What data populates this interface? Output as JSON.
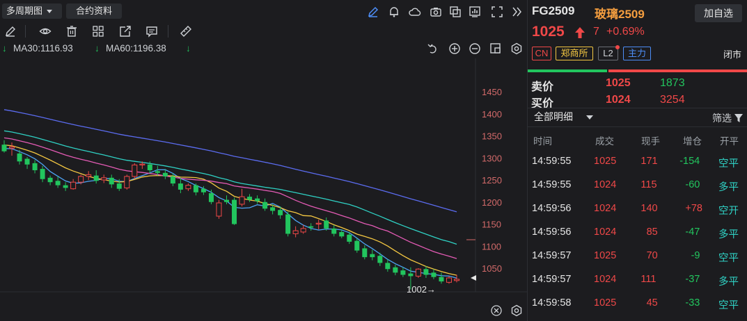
{
  "toolbar": {
    "period_label": "多周期图",
    "contract_label": "合约资料"
  },
  "ma_legend": [
    {
      "label": "MA30:1116.93",
      "color": "#2fd1c4"
    },
    {
      "label": "MA60:1196.38",
      "color": "#5b6cf0"
    }
  ],
  "chart_data": {
    "type": "candlestick",
    "y_ticks": [
      "1450",
      "1400",
      "1350",
      "1300",
      "1250",
      "1200",
      "1150",
      "1100",
      "1050"
    ],
    "ylim": [
      1000,
      1480
    ],
    "annotation": "1002→",
    "candles": [
      [
        1330,
        1340,
        1315,
        1312,
        1
      ],
      [
        1322,
        1335,
        1325,
        1305,
        0
      ],
      [
        1310,
        1318,
        1292,
        1285,
        1
      ],
      [
        1298,
        1302,
        1285,
        1275,
        1
      ],
      [
        1288,
        1295,
        1272,
        1265,
        1
      ],
      [
        1275,
        1282,
        1252,
        1245,
        1
      ],
      [
        1255,
        1260,
        1245,
        1238,
        1
      ],
      [
        1248,
        1258,
        1238,
        1232,
        1
      ],
      [
        1238,
        1245,
        1232,
        1225,
        1
      ],
      [
        1230,
        1252,
        1245,
        1228,
        0
      ],
      [
        1245,
        1262,
        1258,
        1240,
        0
      ],
      [
        1258,
        1270,
        1262,
        1250,
        0
      ],
      [
        1260,
        1272,
        1248,
        1242,
        1
      ],
      [
        1250,
        1262,
        1255,
        1243,
        0
      ],
      [
        1255,
        1262,
        1240,
        1232,
        1
      ],
      [
        1242,
        1252,
        1230,
        1225,
        1
      ],
      [
        1232,
        1262,
        1258,
        1228,
        0
      ],
      [
        1258,
        1288,
        1284,
        1252,
        0
      ],
      [
        1284,
        1292,
        1286,
        1275,
        0
      ],
      [
        1285,
        1292,
        1272,
        1265,
        1
      ],
      [
        1270,
        1282,
        1266,
        1260,
        1
      ],
      [
        1266,
        1275,
        1258,
        1252,
        1
      ],
      [
        1258,
        1265,
        1242,
        1236,
        1
      ],
      [
        1242,
        1255,
        1228,
        1220,
        1
      ],
      [
        1230,
        1242,
        1238,
        1225,
        0
      ],
      [
        1238,
        1242,
        1222,
        1215,
        1
      ],
      [
        1230,
        1236,
        1222,
        1216,
        1
      ],
      [
        1220,
        1228,
        1200,
        1195,
        1
      ],
      [
        1198,
        1205,
        1168,
        1162,
        0
      ],
      [
        1205,
        1215,
        1200,
        1195,
        1
      ],
      [
        1205,
        1210,
        1150,
        1148,
        1
      ],
      [
        1195,
        1230,
        1212,
        1190,
        0
      ],
      [
        1212,
        1218,
        1205,
        1200,
        1
      ],
      [
        1208,
        1215,
        1202,
        1196,
        1
      ],
      [
        1200,
        1208,
        1185,
        1180,
        1
      ],
      [
        1188,
        1195,
        1180,
        1172,
        1
      ],
      [
        1182,
        1190,
        1170,
        1162,
        1
      ],
      [
        1172,
        1178,
        1128,
        1122,
        1
      ],
      [
        1135,
        1145,
        1128,
        1120,
        0
      ],
      [
        1140,
        1148,
        1132,
        1128,
        0
      ],
      [
        1145,
        1152,
        1142,
        1135,
        1
      ],
      [
        1150,
        1160,
        1152,
        1138,
        0
      ],
      [
        1158,
        1165,
        1140,
        1135,
        1
      ],
      [
        1140,
        1148,
        1128,
        1122,
        1
      ],
      [
        1132,
        1138,
        1122,
        1118,
        1
      ],
      [
        1126,
        1132,
        1110,
        1105,
        1
      ],
      [
        1112,
        1118,
        1090,
        1085,
        1
      ],
      [
        1095,
        1102,
        1075,
        1070,
        1
      ],
      [
        1082,
        1092,
        1075,
        1068,
        1
      ],
      [
        1078,
        1085,
        1062,
        1055,
        1
      ],
      [
        1062,
        1070,
        1048,
        1042,
        1
      ],
      [
        1052,
        1058,
        1040,
        1034,
        1
      ],
      [
        1045,
        1052,
        1035,
        1030,
        1
      ],
      [
        1038,
        1052,
        1032,
        1002,
        1
      ],
      [
        1032,
        1050,
        1048,
        1028,
        0
      ],
      [
        1048,
        1055,
        1035,
        1028,
        1
      ],
      [
        1040,
        1048,
        1030,
        1025,
        1
      ],
      [
        1030,
        1040,
        1020,
        1015,
        1
      ],
      [
        1018,
        1032,
        1028,
        1015,
        0
      ],
      [
        1022,
        1035,
        1025,
        1018,
        0
      ]
    ]
  },
  "quote": {
    "symbol": "FG2509",
    "name": "玻璃2509",
    "watch_label": "加自选",
    "price": "1025",
    "change": "7",
    "pct": "+0.69%",
    "tags": [
      "CN",
      "郑商所",
      "L2",
      "主力"
    ],
    "status": "闭市",
    "ask_label": "卖价",
    "ask_price": "1025",
    "ask_vol": "1873",
    "bid_label": "买价",
    "bid_price": "1024",
    "bid_vol": "3254"
  },
  "detail": {
    "title": "全部明细",
    "filter_label": "筛选",
    "headers": [
      "时间",
      "成交",
      "现手",
      "增仓",
      "开平"
    ],
    "rows": [
      {
        "time": "14:59:55",
        "price": "1025",
        "vol": "171",
        "oi": "-154",
        "kind": "空平",
        "kind_color": "#2fd1c4"
      },
      {
        "time": "14:59:55",
        "price": "1024",
        "vol": "115",
        "oi": "-60",
        "kind": "多平",
        "kind_color": "#2fd1c4"
      },
      {
        "time": "14:59:56",
        "price": "1024",
        "vol": "140",
        "oi": "+78",
        "kind": "空开",
        "kind_color": "#2fd1c4"
      },
      {
        "time": "14:59:56",
        "price": "1024",
        "vol": "85",
        "oi": "-47",
        "kind": "多平",
        "kind_color": "#2fd1c4"
      },
      {
        "time": "14:59:57",
        "price": "1025",
        "vol": "70",
        "oi": "-9",
        "kind": "空平",
        "kind_color": "#2fd1c4"
      },
      {
        "time": "14:59:57",
        "price": "1024",
        "vol": "111",
        "oi": "-37",
        "kind": "多平",
        "kind_color": "#2fd1c4"
      },
      {
        "time": "14:59:58",
        "price": "1025",
        "vol": "45",
        "oi": "-33",
        "kind": "空平",
        "kind_color": "#2fd1c4"
      }
    ]
  }
}
